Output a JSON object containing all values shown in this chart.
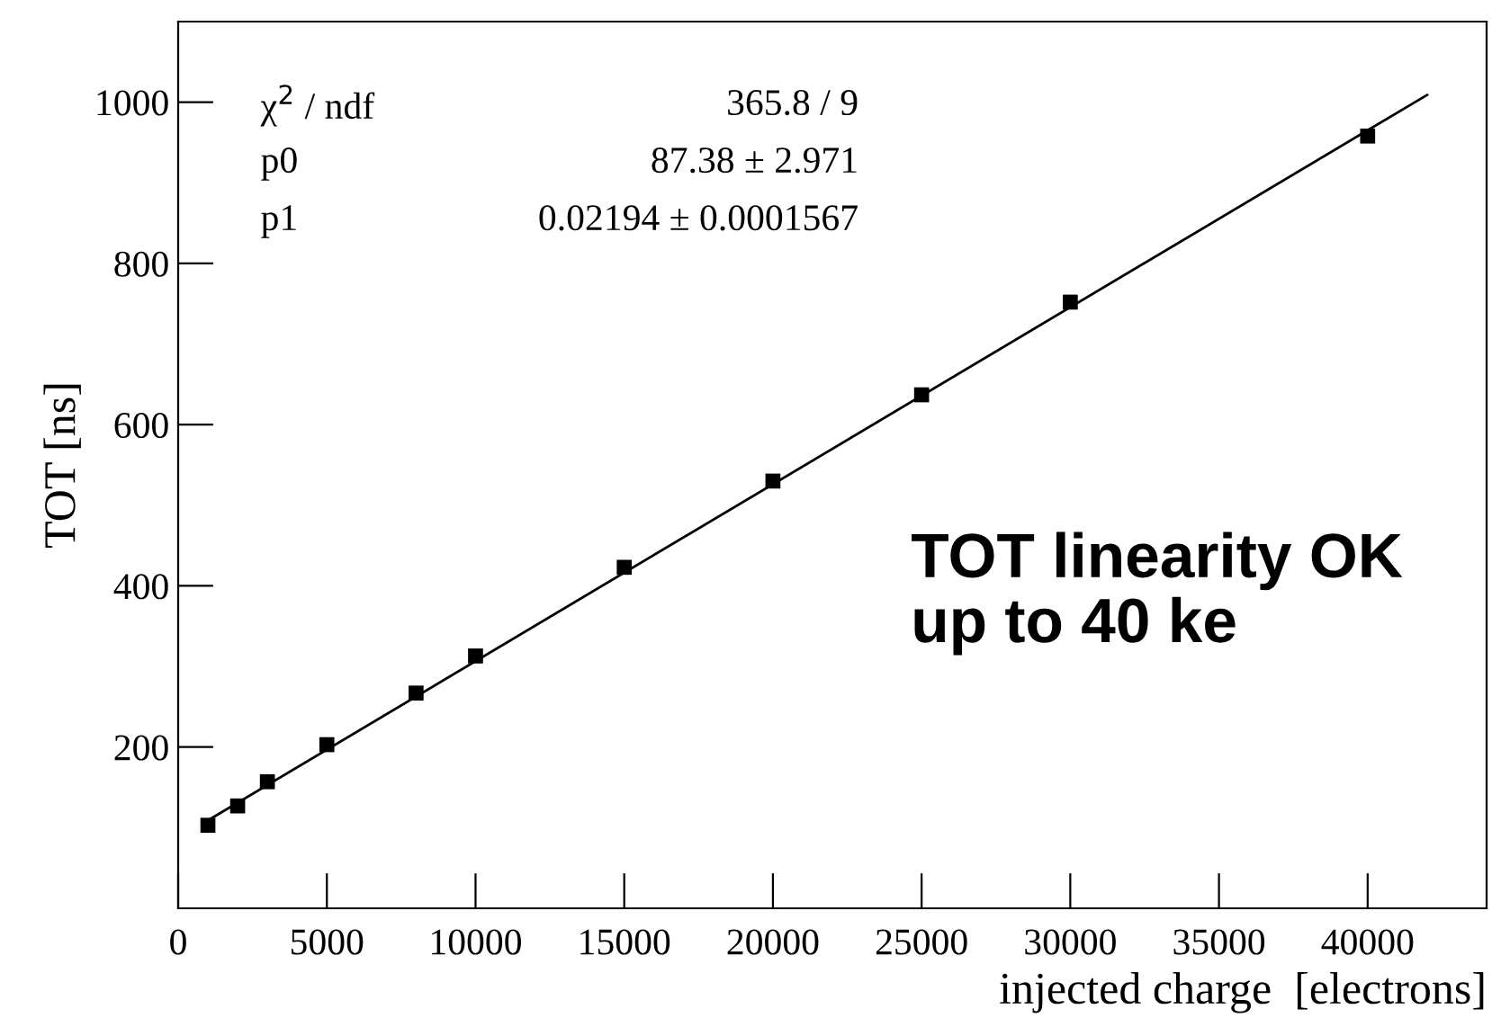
{
  "chart_data": {
    "type": "scatter",
    "xlabel": "injected charge  [electrons]",
    "ylabel": "TOT [ns]",
    "xlim": [
      0,
      44000
    ],
    "ylim": [
      0,
      1100
    ],
    "xticks": [
      0,
      5000,
      10000,
      15000,
      20000,
      25000,
      30000,
      35000,
      40000
    ],
    "yticks": [
      200,
      400,
      600,
      800,
      1000
    ],
    "grid": false,
    "series": [
      {
        "marker": "square",
        "color": "#000000",
        "x": [
          1000,
          2000,
          3000,
          5000,
          8000,
          10000,
          15000,
          20000,
          25000,
          30000,
          40000
        ],
        "values": [
          103,
          127,
          157,
          203,
          267,
          313,
          423,
          530,
          637,
          752,
          958
        ]
      },
      {
        "type": "line",
        "marker": "none",
        "line_style": "solid",
        "color": "#000000",
        "x": [
          1000,
          42000
        ],
        "values": [
          109,
          1009
        ]
      }
    ],
    "annotations": [
      "χ$^{2}$ / ndf",
      "365.8 / 9",
      "p0",
      "87.38 ± 2.971",
      "p1",
      "0.02194 ± 0.0001567",
      "TOT linearity OK\nup to 40 ke"
    ]
  }
}
